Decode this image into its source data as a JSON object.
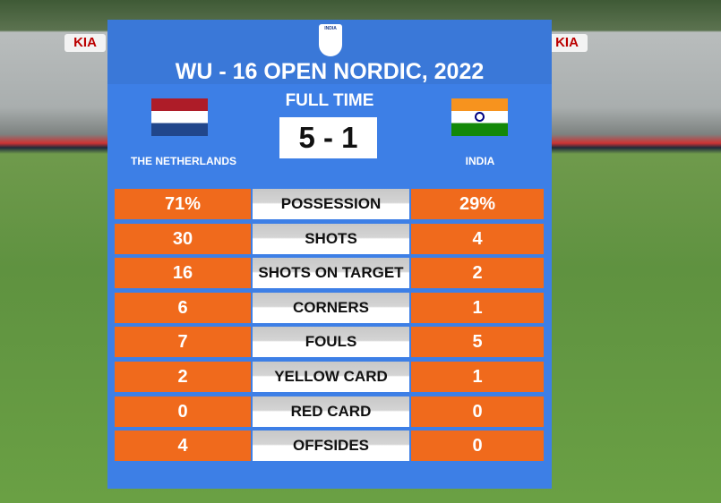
{
  "background": {
    "billboards": [
      "KIA",
      "KIA"
    ]
  },
  "header": {
    "logo_text": "INDIA",
    "title": "WU - 16 OPEN NORDIC, 2022",
    "status": "FULL TIME",
    "score": "5 - 1"
  },
  "teams": {
    "home": "THE NETHERLANDS",
    "away": "INDIA"
  },
  "stats": {
    "rows": [
      [
        "71%",
        "POSSESSION",
        "29%"
      ],
      [
        "30",
        "SHOTS",
        "4"
      ],
      [
        "16",
        "SHOTS ON  TARGET",
        "2"
      ],
      [
        "6",
        "CORNERS",
        "1"
      ],
      [
        "7",
        "FOULS",
        "5"
      ],
      [
        "2",
        "YELLOW CARD",
        "1"
      ],
      [
        "0",
        "RED CARD",
        "0"
      ],
      [
        "4",
        "OFFSIDES",
        "0"
      ]
    ]
  }
}
